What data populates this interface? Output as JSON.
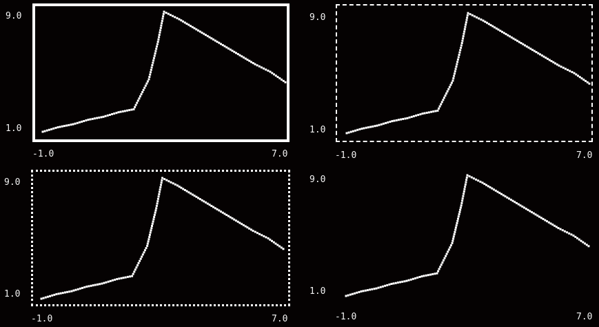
{
  "colors": {
    "background": "#050202",
    "foreground": "#ffffff",
    "text": "#f2f2f2"
  },
  "chart_data": [
    {
      "type": "line",
      "border": "solid",
      "ylim": [
        1.0,
        9.0
      ],
      "xlim": [
        -1.0,
        7.0
      ],
      "y_tick_labels": [
        "9.0",
        "1.0"
      ],
      "x_tick_labels": [
        "-1.0",
        "7.0"
      ],
      "series": [
        {
          "x": [
            -1.0,
            -0.5,
            0.0,
            0.5,
            1.0,
            1.5,
            2.0,
            2.5,
            2.8,
            3.0,
            3.5,
            4.0,
            4.5,
            5.0,
            5.5,
            6.0,
            6.5,
            7.0
          ],
          "y": [
            1.0,
            1.3,
            1.5,
            1.8,
            2.0,
            2.3,
            2.5,
            4.5,
            7.0,
            9.0,
            8.5,
            7.9,
            7.3,
            6.7,
            6.1,
            5.5,
            5.0,
            4.3
          ]
        }
      ]
    },
    {
      "type": "line",
      "border": "dashed",
      "ylim": [
        1.0,
        9.0
      ],
      "xlim": [
        -1.0,
        7.0
      ],
      "y_tick_labels": [
        "9.0",
        "1.0"
      ],
      "x_tick_labels": [
        "-1.0",
        "7.0"
      ],
      "series": [
        {
          "x": [
            -1.0,
            -0.5,
            0.0,
            0.5,
            1.0,
            1.5,
            2.0,
            2.5,
            2.8,
            3.0,
            3.5,
            4.0,
            4.5,
            5.0,
            5.5,
            6.0,
            6.5,
            7.0
          ],
          "y": [
            1.0,
            1.3,
            1.5,
            1.8,
            2.0,
            2.3,
            2.5,
            4.5,
            7.0,
            9.0,
            8.5,
            7.9,
            7.3,
            6.7,
            6.1,
            5.5,
            5.0,
            4.3
          ]
        }
      ]
    },
    {
      "type": "line",
      "border": "dotted",
      "ylim": [
        1.0,
        9.0
      ],
      "xlim": [
        -1.0,
        7.0
      ],
      "y_tick_labels": [
        "9.0",
        "1.0"
      ],
      "x_tick_labels": [
        "-1.0",
        "7.0"
      ],
      "series": [
        {
          "x": [
            -1.0,
            -0.5,
            0.0,
            0.5,
            1.0,
            1.5,
            2.0,
            2.5,
            2.8,
            3.0,
            3.5,
            4.0,
            4.5,
            5.0,
            5.5,
            6.0,
            6.5,
            7.0
          ],
          "y": [
            1.0,
            1.3,
            1.5,
            1.8,
            2.0,
            2.3,
            2.5,
            4.5,
            7.0,
            9.0,
            8.5,
            7.9,
            7.3,
            6.7,
            6.1,
            5.5,
            5.0,
            4.3
          ]
        }
      ]
    },
    {
      "type": "line",
      "border": "none",
      "ylim": [
        1.0,
        9.0
      ],
      "xlim": [
        -1.0,
        7.0
      ],
      "y_tick_labels": [
        "9.0",
        "1.0"
      ],
      "x_tick_labels": [
        "-1.0",
        "7.0"
      ],
      "series": [
        {
          "x": [
            -1.0,
            -0.5,
            0.0,
            0.5,
            1.0,
            1.5,
            2.0,
            2.5,
            2.8,
            3.0,
            3.5,
            4.0,
            4.5,
            5.0,
            5.5,
            6.0,
            6.5,
            7.0
          ],
          "y": [
            1.0,
            1.3,
            1.5,
            1.8,
            2.0,
            2.3,
            2.5,
            4.5,
            7.0,
            9.0,
            8.5,
            7.9,
            7.3,
            6.7,
            6.1,
            5.5,
            5.0,
            4.3
          ]
        }
      ]
    }
  ]
}
